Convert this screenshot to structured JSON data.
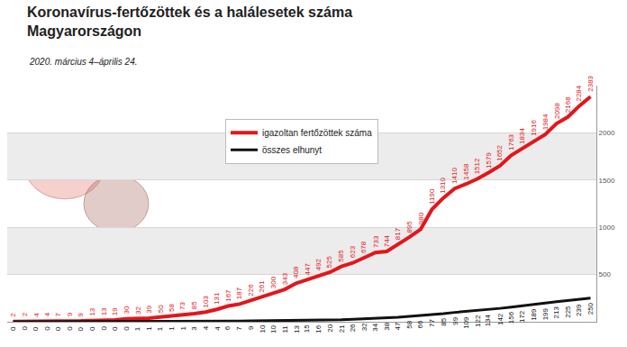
{
  "chart_data": {
    "type": "line",
    "title": "Koronavírus-fertőzöttek és a halálesetek száma\nMagyarországon",
    "subtitle": "2020. március 4–április 24.",
    "categories": [
      null,
      null,
      null,
      null,
      null,
      null,
      null,
      null,
      null,
      null,
      null,
      null,
      null,
      null,
      null,
      null,
      null,
      null,
      null,
      null,
      null,
      null,
      null,
      null,
      null,
      null,
      null,
      null,
      null,
      null,
      null,
      null,
      null,
      null,
      null,
      null,
      null,
      null,
      null,
      null,
      null,
      null,
      null,
      null,
      null,
      null,
      null,
      null,
      null,
      null,
      null,
      null
    ],
    "series": [
      {
        "name": "igazoltan fertőzöttek száma",
        "color": "#e3161b",
        "values": [
          2,
          2,
          4,
          4,
          7,
          9,
          9,
          13,
          13,
          19,
          30,
          32,
          39,
          50,
          58,
          73,
          85,
          103,
          131,
          167,
          187,
          226,
          261,
          300,
          343,
          408,
          447,
          492,
          525,
          585,
          623,
          678,
          733,
          744,
          817,
          895,
          980,
          1190,
          1310,
          1410,
          1458,
          1512,
          1579,
          1652,
          1763,
          1834,
          1916,
          1984,
          2098,
          2168,
          2284,
          2383
        ]
      },
      {
        "name": "összes elhunyt",
        "color": "#111111",
        "values": [
          0,
          0,
          0,
          0,
          0,
          0,
          0,
          0,
          0,
          0,
          0,
          1,
          1,
          1,
          1,
          1,
          3,
          4,
          4,
          6,
          7,
          9,
          10,
          10,
          11,
          13,
          15,
          16,
          20,
          21,
          26,
          32,
          34,
          38,
          47,
          58,
          66,
          77,
          85,
          99,
          109,
          122,
          134,
          142,
          156,
          172,
          189,
          199,
          213,
          225,
          239,
          250
        ]
      }
    ],
    "ylim": [
      0,
      2500
    ],
    "yticks": [
      500,
      1000,
      1500,
      2000
    ],
    "grid": true,
    "legend": "top",
    "data_labels": true,
    "tick_labels": "y"
  }
}
